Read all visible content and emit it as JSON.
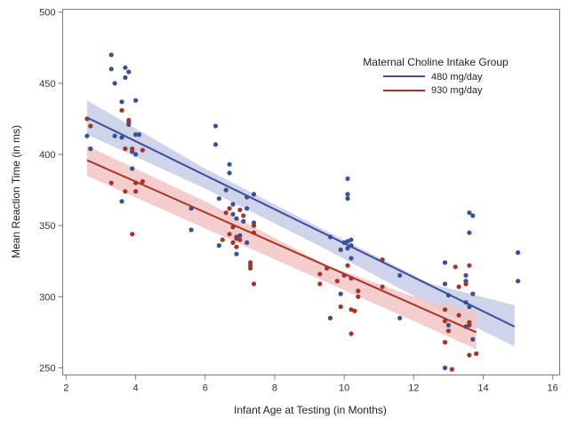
{
  "chart_data": {
    "type": "scatter",
    "title": "",
    "xlabel": "Infant Age at Testing (in Months)",
    "ylabel": "Mean Reaction Time (in ms)",
    "xlim": [
      1.9,
      16.2
    ],
    "ylim": [
      245,
      502
    ],
    "x_ticks": [
      "2",
      "4",
      "6",
      "8",
      "10",
      "12",
      "14",
      "16"
    ],
    "y_ticks": [
      "250",
      "300",
      "350",
      "400",
      "450",
      "500"
    ],
    "grid": false,
    "legend": {
      "title": "Maternal Choline Intake Group",
      "placement": "top-right, inside"
    },
    "series": [
      {
        "name": "480 mg/day",
        "color": "#3a4f9a",
        "band_color": "#c8cde6",
        "regression": {
          "x": [
            2.6,
            14.9
          ],
          "y": [
            426,
            279
          ]
        },
        "ci_band": {
          "x": [
            2.6,
            6.0,
            9.5,
            12.5,
            14.9
          ],
          "lower": [
            414,
            376,
            333,
            294,
            265
          ],
          "upper": [
            438,
            390,
            346,
            309,
            294
          ]
        },
        "points": [
          [
            2.6,
            413
          ],
          [
            2.7,
            404
          ],
          [
            3.3,
            470
          ],
          [
            3.3,
            460
          ],
          [
            3.4,
            450
          ],
          [
            3.4,
            413
          ],
          [
            3.6,
            437
          ],
          [
            3.6,
            412
          ],
          [
            3.6,
            367
          ],
          [
            3.7,
            461
          ],
          [
            3.7,
            454
          ],
          [
            3.8,
            458
          ],
          [
            3.8,
            424
          ],
          [
            3.8,
            421
          ],
          [
            3.9,
            402
          ],
          [
            3.9,
            390
          ],
          [
            4.0,
            438
          ],
          [
            4.0,
            414
          ],
          [
            4.0,
            400
          ],
          [
            4.1,
            414
          ],
          [
            5.6,
            362
          ],
          [
            5.6,
            347
          ],
          [
            6.3,
            420
          ],
          [
            6.3,
            407
          ],
          [
            6.4,
            369
          ],
          [
            6.4,
            336
          ],
          [
            6.6,
            375
          ],
          [
            6.7,
            393
          ],
          [
            6.7,
            387
          ],
          [
            6.8,
            365
          ],
          [
            6.8,
            358
          ],
          [
            6.9,
            355
          ],
          [
            6.9,
            342
          ],
          [
            6.9,
            330
          ],
          [
            7.0,
            343
          ],
          [
            7.1,
            353
          ],
          [
            7.2,
            370
          ],
          [
            7.2,
            362
          ],
          [
            7.2,
            338
          ],
          [
            7.4,
            372
          ],
          [
            7.4,
            352
          ],
          [
            9.6,
            342
          ],
          [
            9.6,
            285
          ],
          [
            9.9,
            333
          ],
          [
            9.9,
            302
          ],
          [
            10.0,
            338
          ],
          [
            10.1,
            383
          ],
          [
            10.1,
            372
          ],
          [
            10.1,
            369
          ],
          [
            10.1,
            339
          ],
          [
            10.1,
            334
          ],
          [
            10.2,
            340
          ],
          [
            10.2,
            336
          ],
          [
            10.2,
            327
          ],
          [
            11.6,
            315
          ],
          [
            11.6,
            285
          ],
          [
            12.9,
            324
          ],
          [
            12.9,
            309
          ],
          [
            12.9,
            250
          ],
          [
            13.0,
            301
          ],
          [
            13.0,
            280
          ],
          [
            13.5,
            315
          ],
          [
            13.5,
            311
          ],
          [
            13.5,
            296
          ],
          [
            13.5,
            279
          ],
          [
            13.6,
            359
          ],
          [
            13.6,
            345
          ],
          [
            13.6,
            293
          ],
          [
            13.6,
            280
          ],
          [
            13.7,
            357
          ],
          [
            13.7,
            302
          ],
          [
            13.7,
            270
          ],
          [
            15.0,
            331
          ],
          [
            15.0,
            311
          ]
        ]
      },
      {
        "name": "930 mg/day",
        "color": "#a83228",
        "band_color": "#f1c6c3",
        "regression": {
          "x": [
            2.6,
            13.8
          ],
          "y": [
            396,
            275
          ]
        },
        "ci_band": {
          "x": [
            2.6,
            6.0,
            9.5,
            12.0,
            13.8
          ],
          "lower": [
            385,
            348,
            310,
            283,
            263
          ],
          "upper": [
            406,
            367,
            322,
            300,
            289
          ]
        },
        "points": [
          [
            2.6,
            425
          ],
          [
            2.7,
            420
          ],
          [
            3.3,
            380
          ],
          [
            3.6,
            431
          ],
          [
            3.7,
            404
          ],
          [
            3.7,
            374
          ],
          [
            3.8,
            423
          ],
          [
            3.9,
            404
          ],
          [
            3.9,
            344
          ],
          [
            4.0,
            380
          ],
          [
            4.0,
            374
          ],
          [
            4.2,
            403
          ],
          [
            4.2,
            381
          ],
          [
            6.5,
            340
          ],
          [
            6.6,
            359
          ],
          [
            6.7,
            362
          ],
          [
            6.7,
            344
          ],
          [
            6.8,
            349
          ],
          [
            6.8,
            338
          ],
          [
            6.9,
            341
          ],
          [
            6.9,
            335
          ],
          [
            7.0,
            340
          ],
          [
            7.0,
            361
          ],
          [
            7.1,
            357
          ],
          [
            7.3,
            324
          ],
          [
            7.3,
            322
          ],
          [
            7.3,
            320
          ],
          [
            7.4,
            350
          ],
          [
            7.4,
            345
          ],
          [
            7.4,
            309
          ],
          [
            9.3,
            316
          ],
          [
            9.3,
            309
          ],
          [
            9.5,
            320
          ],
          [
            9.8,
            311
          ],
          [
            9.9,
            293
          ],
          [
            10.0,
            315
          ],
          [
            10.1,
            322
          ],
          [
            10.2,
            313
          ],
          [
            10.2,
            291
          ],
          [
            10.2,
            274
          ],
          [
            10.3,
            290
          ],
          [
            10.4,
            304
          ],
          [
            10.4,
            300
          ],
          [
            11.1,
            326
          ],
          [
            11.1,
            307
          ],
          [
            12.9,
            291
          ],
          [
            12.9,
            283
          ],
          [
            12.9,
            268
          ],
          [
            13.0,
            276
          ],
          [
            13.1,
            249
          ],
          [
            13.2,
            321
          ],
          [
            13.3,
            287
          ],
          [
            13.3,
            307
          ],
          [
            13.5,
            309
          ],
          [
            13.6,
            322
          ],
          [
            13.6,
            282
          ],
          [
            13.6,
            259
          ],
          [
            13.8,
            260
          ]
        ]
      }
    ]
  }
}
